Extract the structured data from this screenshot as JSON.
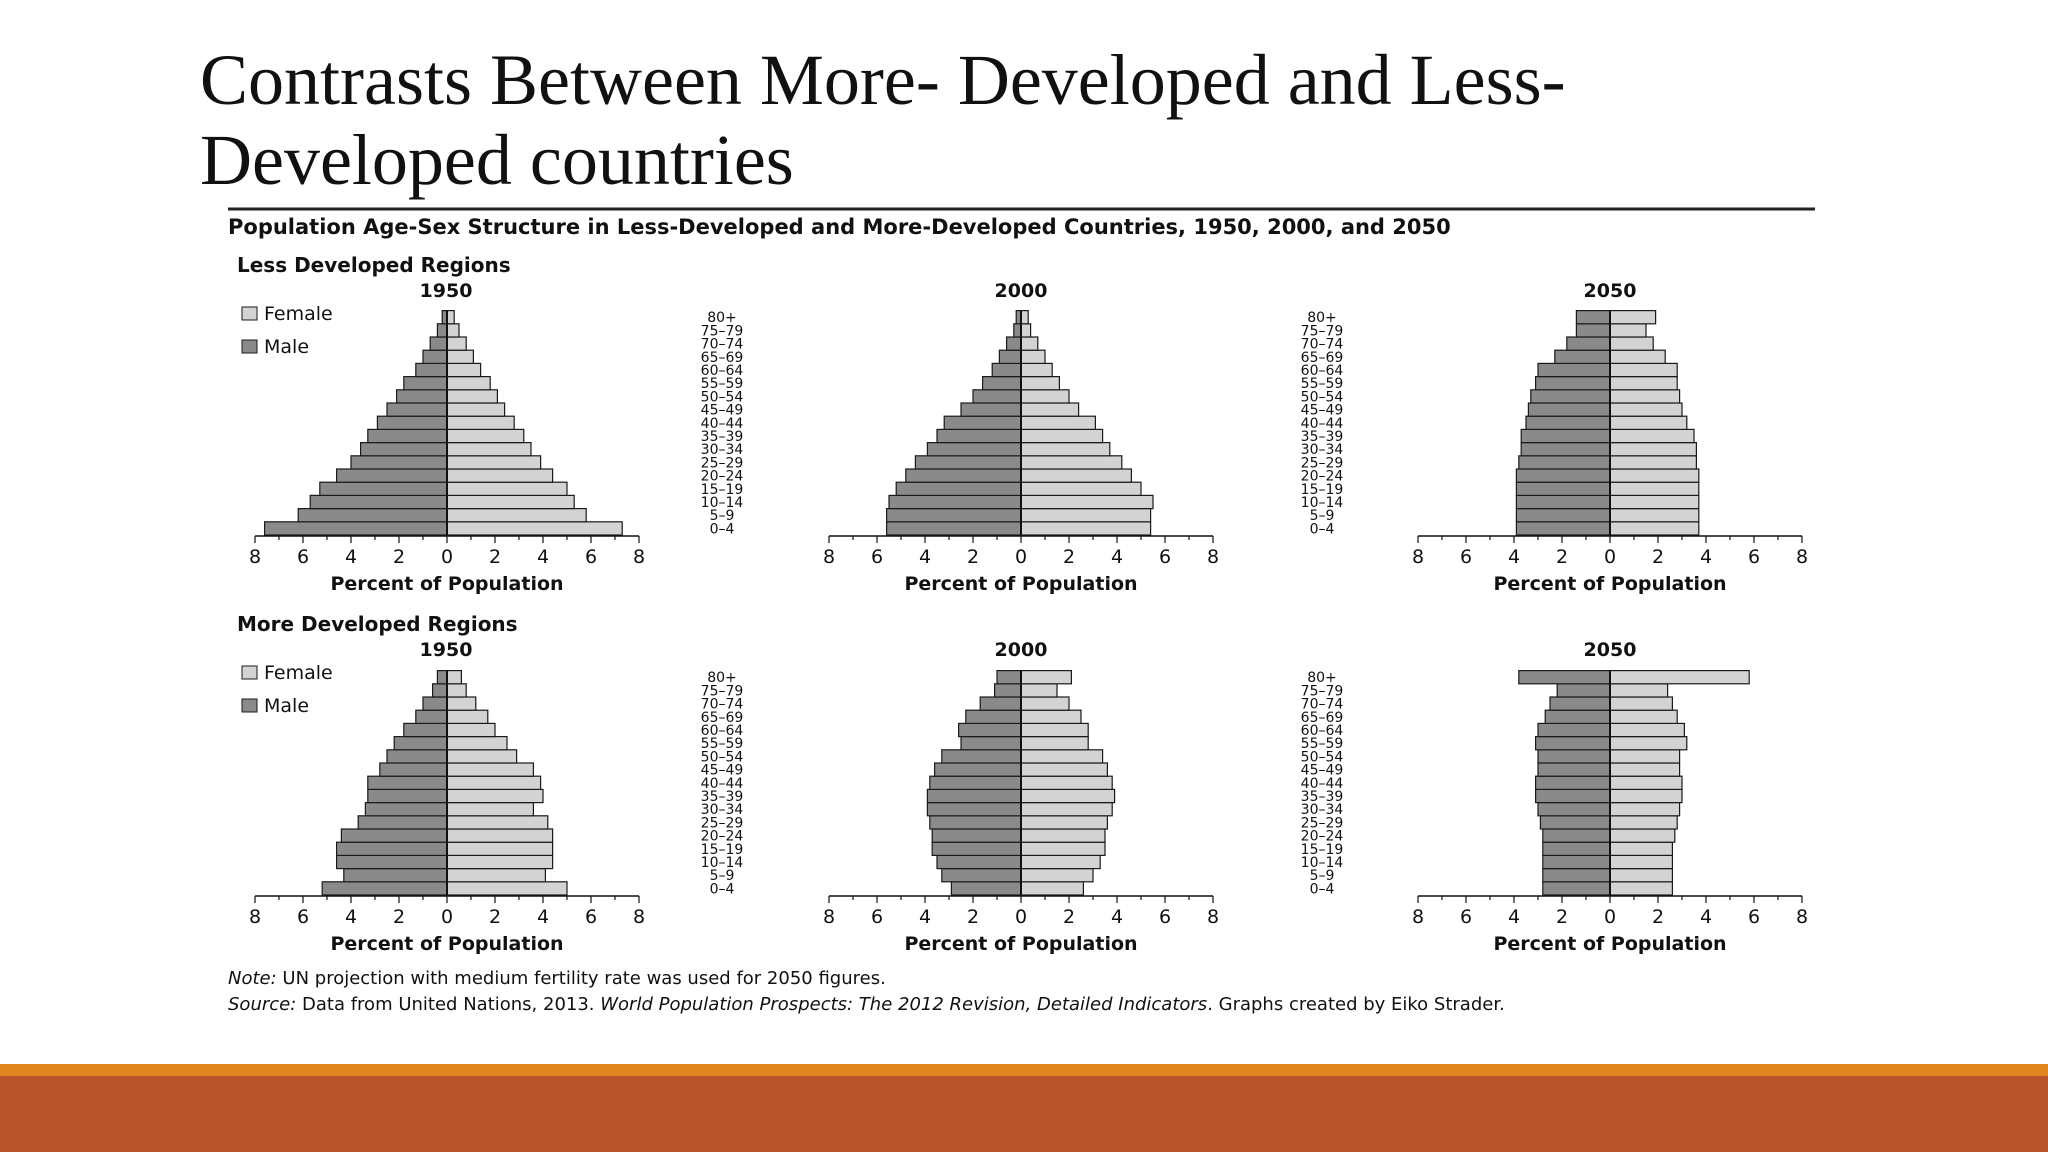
{
  "slide": {
    "title_line1": "Contrasts Between More- Developed and Less-",
    "title_line2": "Developed countries"
  },
  "colors": {
    "female": "#d3d3d3",
    "male": "#8a8a8a",
    "bar_stroke": "#1a1a1a",
    "orange_band": "#e0861f",
    "rust_band": "#b9552a"
  },
  "figure": {
    "title": "Population Age-Sex Structure in Less-Developed and More-Developed Countries, 1950, 2000, and 2050",
    "note_label": "Note:",
    "note_text": " UN projection with medium fertility rate was used for 2050 figures.",
    "source_label": "Source:",
    "source_text": " Data from United Nations, 2013. ",
    "source_italic": "World Population Prospects: The 2012 Revision, Detailed Indicators",
    "source_end": ". Graphs created by Eiko Strader."
  },
  "chart_data": {
    "type": "bar",
    "subtype": "population-pyramid",
    "age_groups": [
      "0–4",
      "5–9",
      "10–14",
      "15–19",
      "20–24",
      "25–29",
      "30–34",
      "35–39",
      "40–44",
      "45–49",
      "50–54",
      "55–59",
      "60–64",
      "65–69",
      "70–74",
      "75–79",
      "80+"
    ],
    "axis_ticks": [
      "8",
      "6",
      "4",
      "2",
      "0",
      "2",
      "4",
      "6",
      "8"
    ],
    "xlim": [
      -8,
      8
    ],
    "xlabel": "Percent of Population",
    "legend": [
      "Female",
      "Male"
    ],
    "legend_placement": "top-left",
    "regions": [
      {
        "name": "Less Developed Regions",
        "charts": [
          {
            "year": "1950",
            "male": [
              7.6,
              6.2,
              5.7,
              5.3,
              4.6,
              4.0,
              3.6,
              3.3,
              2.9,
              2.5,
              2.1,
              1.8,
              1.3,
              1.0,
              0.7,
              0.4,
              0.2
            ],
            "female": [
              7.3,
              5.8,
              5.3,
              5.0,
              4.4,
              3.9,
              3.5,
              3.2,
              2.8,
              2.4,
              2.1,
              1.8,
              1.4,
              1.1,
              0.8,
              0.5,
              0.3
            ]
          },
          {
            "year": "2000",
            "male": [
              5.6,
              5.6,
              5.5,
              5.2,
              4.8,
              4.4,
              3.9,
              3.5,
              3.2,
              2.5,
              2.0,
              1.6,
              1.2,
              0.9,
              0.6,
              0.3,
              0.2
            ],
            "female": [
              5.4,
              5.4,
              5.5,
              5.0,
              4.6,
              4.2,
              3.7,
              3.4,
              3.1,
              2.4,
              2.0,
              1.6,
              1.3,
              1.0,
              0.7,
              0.4,
              0.3
            ]
          },
          {
            "year": "2050",
            "male": [
              3.9,
              3.9,
              3.9,
              3.9,
              3.9,
              3.8,
              3.7,
              3.7,
              3.5,
              3.4,
              3.3,
              3.1,
              3.0,
              2.3,
              1.8,
              1.4,
              1.4
            ],
            "female": [
              3.7,
              3.7,
              3.7,
              3.7,
              3.7,
              3.6,
              3.6,
              3.5,
              3.2,
              3.0,
              2.9,
              2.8,
              2.8,
              2.3,
              1.8,
              1.5,
              1.9
            ]
          }
        ]
      },
      {
        "name": "More Developed Regions",
        "charts": [
          {
            "year": "1950",
            "male": [
              5.2,
              4.3,
              4.6,
              4.6,
              4.4,
              3.7,
              3.4,
              3.3,
              3.3,
              2.8,
              2.5,
              2.2,
              1.8,
              1.3,
              1.0,
              0.6,
              0.4
            ],
            "female": [
              5.0,
              4.1,
              4.4,
              4.4,
              4.4,
              4.2,
              3.6,
              4.0,
              3.9,
              3.6,
              2.9,
              2.5,
              2.0,
              1.7,
              1.2,
              0.8,
              0.6
            ]
          },
          {
            "year": "2000",
            "male": [
              2.9,
              3.3,
              3.5,
              3.7,
              3.7,
              3.8,
              3.9,
              3.9,
              3.8,
              3.6,
              3.3,
              2.5,
              2.6,
              2.3,
              1.7,
              1.1,
              1.0
            ],
            "female": [
              2.6,
              3.0,
              3.3,
              3.5,
              3.5,
              3.6,
              3.8,
              3.9,
              3.8,
              3.6,
              3.4,
              2.8,
              2.8,
              2.5,
              2.0,
              1.5,
              2.1
            ]
          },
          {
            "year": "2050",
            "male": [
              2.8,
              2.8,
              2.8,
              2.8,
              2.8,
              2.9,
              3.0,
              3.1,
              3.1,
              3.0,
              3.0,
              3.1,
              3.0,
              2.7,
              2.5,
              2.2,
              3.8
            ],
            "female": [
              2.6,
              2.6,
              2.6,
              2.6,
              2.7,
              2.8,
              2.9,
              3.0,
              3.0,
              2.9,
              2.9,
              3.2,
              3.1,
              2.8,
              2.6,
              2.4,
              5.8
            ]
          }
        ]
      }
    ]
  }
}
